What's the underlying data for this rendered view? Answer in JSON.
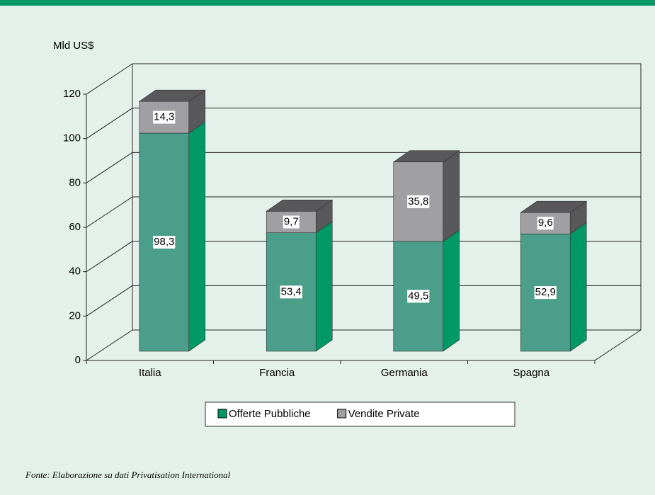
{
  "chart_data": {
    "type": "bar",
    "stacked": true,
    "y_label": "Mld US$",
    "categories": [
      "Italia",
      "Francia",
      "Germania",
      "Spagna"
    ],
    "series": [
      {
        "name": "Offerte Pubbliche",
        "color": "#4a9e8a",
        "values": [
          98.3,
          53.4,
          49.5,
          52.9
        ],
        "value_labels": [
          "98,3",
          "53,4",
          "49,5",
          "52,9"
        ]
      },
      {
        "name": "Vendite Private",
        "color": "#a0a0a4",
        "values": [
          14.3,
          9.7,
          35.8,
          9.6
        ],
        "value_labels": [
          "14,3",
          "9,7",
          "35,8",
          "9,6"
        ]
      }
    ],
    "ylim": [
      0,
      120
    ],
    "yticks": [
      0,
      20,
      40,
      60,
      80,
      100,
      120
    ],
    "grid": true,
    "legend": "bottom",
    "source": "Fonte: Elaborazione su dati Privatisation International"
  }
}
